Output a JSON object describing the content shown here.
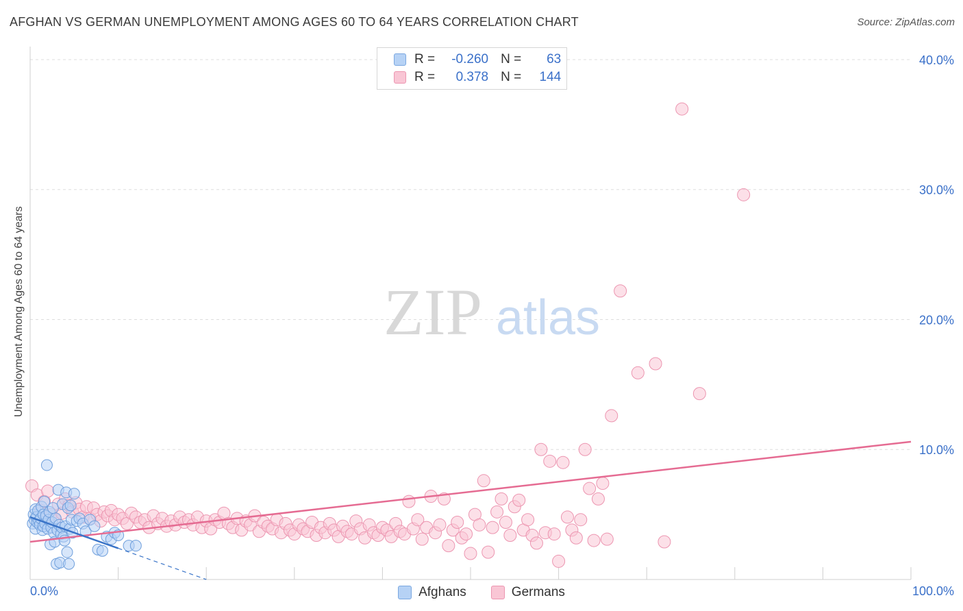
{
  "header": {
    "title": "AFGHAN VS GERMAN UNEMPLOYMENT AMONG AGES 60 TO 64 YEARS CORRELATION CHART",
    "source": "Source: ZipAtlas.com"
  },
  "watermark": {
    "zip": "ZIP",
    "atlas": "atlas"
  },
  "legend": {
    "rows": [
      {
        "r_label": "R =",
        "r_value": "-0.260",
        "n_label": "N =",
        "n_value": "63"
      },
      {
        "r_label": "R =",
        "r_value": "0.378",
        "n_label": "N =",
        "n_value": "144"
      }
    ]
  },
  "colors": {
    "afghans_fill": "#b6d2f5",
    "afghans_stroke": "#6f9fdc",
    "afghans_line": "#3a74c8",
    "germans_fill": "#f9c6d5",
    "germans_stroke": "#ec95b0",
    "germans_line": "#e56b92",
    "axis_text": "#3a70c9",
    "grid": "#dddddd"
  },
  "chart_data": {
    "type": "scatter",
    "title": "AFGHAN VS GERMAN UNEMPLOYMENT AMONG AGES 60 TO 64 YEARS CORRELATION CHART",
    "xlabel": "",
    "ylabel": "Unemployment Among Ages 60 to 64 years",
    "xlim": [
      0,
      100
    ],
    "ylim": [
      0,
      41
    ],
    "x_tick_labels": [
      "0.0%",
      "100.0%"
    ],
    "y_ticks": [
      10,
      20,
      30,
      40
    ],
    "y_tick_labels": [
      "10.0%",
      "20.0%",
      "30.0%",
      "40.0%"
    ],
    "grid": true,
    "legend": [
      "Afghans",
      "Germans"
    ],
    "series": [
      {
        "name": "Afghans",
        "r": -0.26,
        "n": 63,
        "trend": {
          "x0": 0,
          "y0": 4.8,
          "x1": 10,
          "y1": 2.4,
          "dash_to_x": 20,
          "dash_to_y": 0
        },
        "points": [
          [
            0.3,
            4.3
          ],
          [
            0.4,
            5.0
          ],
          [
            0.5,
            4.6
          ],
          [
            0.6,
            5.4
          ],
          [
            0.6,
            3.9
          ],
          [
            0.7,
            4.8
          ],
          [
            0.8,
            4.4
          ],
          [
            0.9,
            5.3
          ],
          [
            1.0,
            4.5
          ],
          [
            1.1,
            4.2
          ],
          [
            1.2,
            4.7
          ],
          [
            1.3,
            5.6
          ],
          [
            1.4,
            3.8
          ],
          [
            1.5,
            4.1
          ],
          [
            1.5,
            5.0
          ],
          [
            1.6,
            6.0
          ],
          [
            1.7,
            4.3
          ],
          [
            1.8,
            4.9
          ],
          [
            1.9,
            8.8
          ],
          [
            2.0,
            3.9
          ],
          [
            2.1,
            4.6
          ],
          [
            2.2,
            5.2
          ],
          [
            2.3,
            2.7
          ],
          [
            2.4,
            4.0
          ],
          [
            2.5,
            4.4
          ],
          [
            2.6,
            5.5
          ],
          [
            2.7,
            3.6
          ],
          [
            2.8,
            2.9
          ],
          [
            2.9,
            4.7
          ],
          [
            3.0,
            1.2
          ],
          [
            3.1,
            3.8
          ],
          [
            3.2,
            6.9
          ],
          [
            3.3,
            4.2
          ],
          [
            3.4,
            1.3
          ],
          [
            3.5,
            3.5
          ],
          [
            3.6,
            4.0
          ],
          [
            3.7,
            5.8
          ],
          [
            3.8,
            3.3
          ],
          [
            3.9,
            3.0
          ],
          [
            4.0,
            4.1
          ],
          [
            4.1,
            6.7
          ],
          [
            4.2,
            2.1
          ],
          [
            4.3,
            5.5
          ],
          [
            4.4,
            1.2
          ],
          [
            4.5,
            3.9
          ],
          [
            4.6,
            5.7
          ],
          [
            4.7,
            4.6
          ],
          [
            4.8,
            3.6
          ],
          [
            5.0,
            6.6
          ],
          [
            5.3,
            4.5
          ],
          [
            5.6,
            4.7
          ],
          [
            6.0,
            4.3
          ],
          [
            6.3,
            3.7
          ],
          [
            6.8,
            4.6
          ],
          [
            7.3,
            4.1
          ],
          [
            7.7,
            2.3
          ],
          [
            8.2,
            2.2
          ],
          [
            8.7,
            3.3
          ],
          [
            9.2,
            3.1
          ],
          [
            9.6,
            3.6
          ],
          [
            10.0,
            3.4
          ],
          [
            11.2,
            2.6
          ],
          [
            12.0,
            2.6
          ]
        ]
      },
      {
        "name": "Germans",
        "r": 0.378,
        "n": 144,
        "trend": {
          "x0": 0,
          "y0": 2.9,
          "x1": 100,
          "y1": 10.6
        },
        "points": [
          [
            0.2,
            7.2
          ],
          [
            0.8,
            6.5
          ],
          [
            1.2,
            5.3
          ],
          [
            1.6,
            6.0
          ],
          [
            2.0,
            6.8
          ],
          [
            2.4,
            5.0
          ],
          [
            2.8,
            4.6
          ],
          [
            3.2,
            5.8
          ],
          [
            3.6,
            5.1
          ],
          [
            4.0,
            6.2
          ],
          [
            4.4,
            5.7
          ],
          [
            4.8,
            5.2
          ],
          [
            5.2,
            5.9
          ],
          [
            5.6,
            5.4
          ],
          [
            6.0,
            4.8
          ],
          [
            6.4,
            5.6
          ],
          [
            6.8,
            4.7
          ],
          [
            7.2,
            5.5
          ],
          [
            7.6,
            5.0
          ],
          [
            8.0,
            4.5
          ],
          [
            8.4,
            5.2
          ],
          [
            8.8,
            4.9
          ],
          [
            9.2,
            5.3
          ],
          [
            9.6,
            4.6
          ],
          [
            10.0,
            5.0
          ],
          [
            10.5,
            4.7
          ],
          [
            11.0,
            4.3
          ],
          [
            11.5,
            5.1
          ],
          [
            12.0,
            4.8
          ],
          [
            12.5,
            4.4
          ],
          [
            13.0,
            4.6
          ],
          [
            13.5,
            4.0
          ],
          [
            14.0,
            4.9
          ],
          [
            14.5,
            4.3
          ],
          [
            15.0,
            4.7
          ],
          [
            15.5,
            4.1
          ],
          [
            16.0,
            4.5
          ],
          [
            16.5,
            4.2
          ],
          [
            17.0,
            4.8
          ],
          [
            17.5,
            4.4
          ],
          [
            18.0,
            4.6
          ],
          [
            18.5,
            4.2
          ],
          [
            19.0,
            4.8
          ],
          [
            19.5,
            4.0
          ],
          [
            20.0,
            4.5
          ],
          [
            20.5,
            3.9
          ],
          [
            21.0,
            4.6
          ],
          [
            21.5,
            4.4
          ],
          [
            22.0,
            5.1
          ],
          [
            22.5,
            4.3
          ],
          [
            23.0,
            4.0
          ],
          [
            23.5,
            4.7
          ],
          [
            24.0,
            3.8
          ],
          [
            24.5,
            4.5
          ],
          [
            25.0,
            4.2
          ],
          [
            25.5,
            4.9
          ],
          [
            26.0,
            3.7
          ],
          [
            26.5,
            4.4
          ],
          [
            27.0,
            4.1
          ],
          [
            27.5,
            3.9
          ],
          [
            28.0,
            4.6
          ],
          [
            28.5,
            3.6
          ],
          [
            29.0,
            4.3
          ],
          [
            29.5,
            3.8
          ],
          [
            30.0,
            3.5
          ],
          [
            30.5,
            4.2
          ],
          [
            31.0,
            3.9
          ],
          [
            31.5,
            3.7
          ],
          [
            32.0,
            4.4
          ],
          [
            32.5,
            3.4
          ],
          [
            33.0,
            4.0
          ],
          [
            33.5,
            3.6
          ],
          [
            34.0,
            4.3
          ],
          [
            34.5,
            3.8
          ],
          [
            35.0,
            3.3
          ],
          [
            35.5,
            4.1
          ],
          [
            36.0,
            3.7
          ],
          [
            36.5,
            3.5
          ],
          [
            37.0,
            4.5
          ],
          [
            37.5,
            3.9
          ],
          [
            38.0,
            3.2
          ],
          [
            38.5,
            4.2
          ],
          [
            39.0,
            3.6
          ],
          [
            39.5,
            3.4
          ],
          [
            40.0,
            4.0
          ],
          [
            40.5,
            3.8
          ],
          [
            41.0,
            3.3
          ],
          [
            41.5,
            4.3
          ],
          [
            42.0,
            3.7
          ],
          [
            42.5,
            3.5
          ],
          [
            43.0,
            6.0
          ],
          [
            43.5,
            3.9
          ],
          [
            44.0,
            4.6
          ],
          [
            44.5,
            3.1
          ],
          [
            45.0,
            4.0
          ],
          [
            45.5,
            6.4
          ],
          [
            46.0,
            3.6
          ],
          [
            46.5,
            4.2
          ],
          [
            47.0,
            6.2
          ],
          [
            47.5,
            2.6
          ],
          [
            48.0,
            3.8
          ],
          [
            48.5,
            4.4
          ],
          [
            49.0,
            3.2
          ],
          [
            49.5,
            3.5
          ],
          [
            50.0,
            2.0
          ],
          [
            50.5,
            5.0
          ],
          [
            51.0,
            4.2
          ],
          [
            51.5,
            7.6
          ],
          [
            52.0,
            2.1
          ],
          [
            52.5,
            4.0
          ],
          [
            53.0,
            5.2
          ],
          [
            53.5,
            6.2
          ],
          [
            54.0,
            4.4
          ],
          [
            54.5,
            3.4
          ],
          [
            55.0,
            5.6
          ],
          [
            55.5,
            6.1
          ],
          [
            56.0,
            3.8
          ],
          [
            56.5,
            4.6
          ],
          [
            57.0,
            3.4
          ],
          [
            57.5,
            2.8
          ],
          [
            58.0,
            10.0
          ],
          [
            58.5,
            3.6
          ],
          [
            59.0,
            9.1
          ],
          [
            59.5,
            3.5
          ],
          [
            60.0,
            1.4
          ],
          [
            60.5,
            9.0
          ],
          [
            61.0,
            4.8
          ],
          [
            61.5,
            3.8
          ],
          [
            62.0,
            3.2
          ],
          [
            62.5,
            4.6
          ],
          [
            63.0,
            10.0
          ],
          [
            63.5,
            7.0
          ],
          [
            64.0,
            3.0
          ],
          [
            64.5,
            6.2
          ],
          [
            65.0,
            7.4
          ],
          [
            65.5,
            3.1
          ],
          [
            66.0,
            12.6
          ],
          [
            67.0,
            22.2
          ],
          [
            69.0,
            15.9
          ],
          [
            71.0,
            16.6
          ],
          [
            72.0,
            2.9
          ],
          [
            74.0,
            36.2
          ],
          [
            76.0,
            14.3
          ],
          [
            81.0,
            29.6
          ]
        ]
      }
    ]
  },
  "bottom_legend": {
    "afghans": "Afghans",
    "germans": "Germans"
  }
}
